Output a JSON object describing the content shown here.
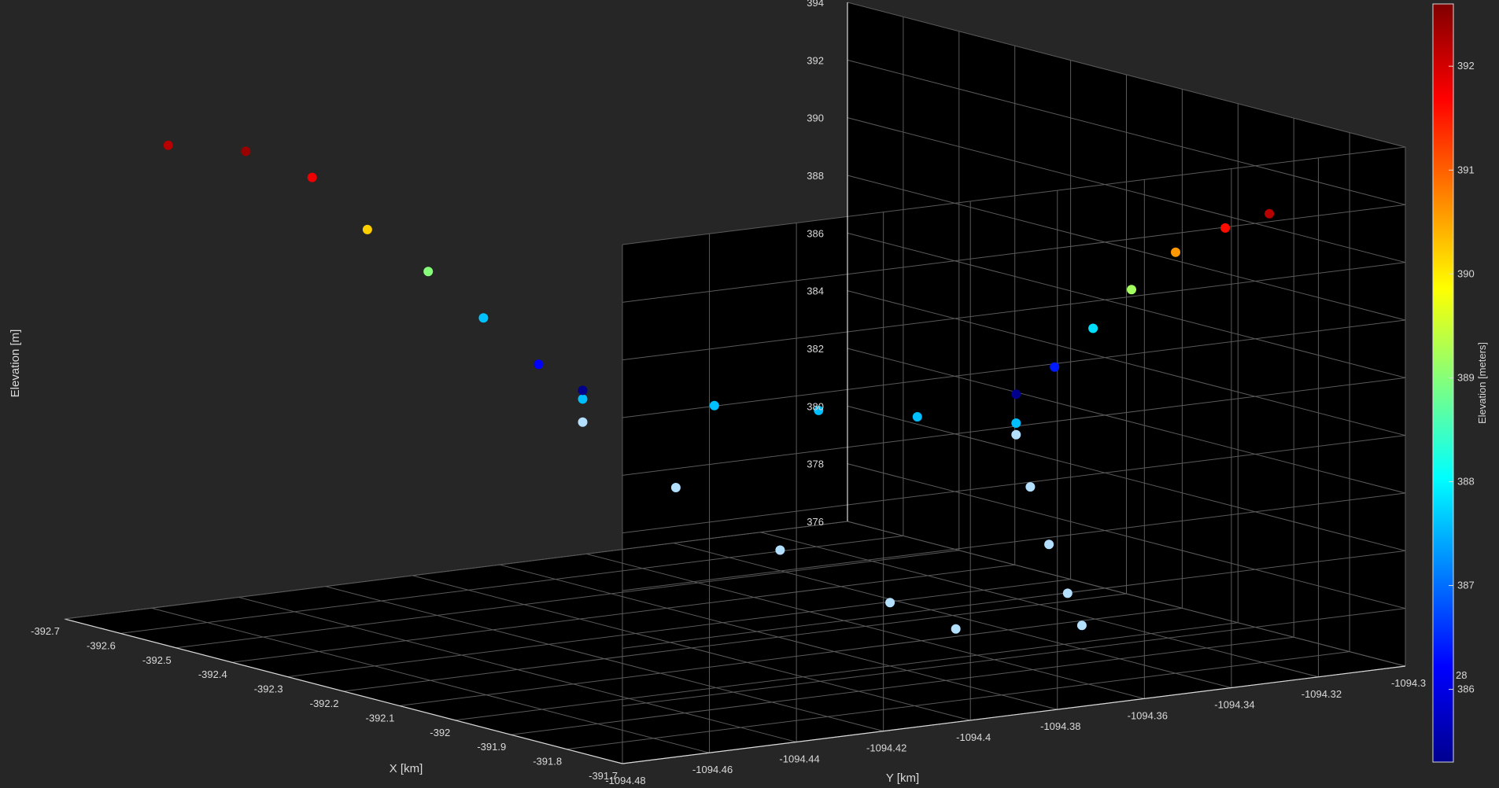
{
  "chart_data": {
    "type": "scatter",
    "title": "",
    "xlabel": "X [km]",
    "ylabel": "Y [km]",
    "zlabel": "Elevation [m]",
    "colorbar_label": "Elevation [meters]",
    "colormap": "jet",
    "background": "#262626",
    "plot_background": "#000000",
    "grid": true,
    "grid_color": "#5a5a5a",
    "tick_color": "#d9d9d9",
    "xlim": [
      -392.7,
      -391.7
    ],
    "ylim": [
      -1094.48,
      -1094.3
    ],
    "zlim": [
      376,
      394
    ],
    "x_ticks": [
      "-392.7",
      "-392.6",
      "-392.5",
      "-392.4",
      "-392.3",
      "-392.2",
      "-392.1",
      "-392",
      "-391.9",
      "-391.8",
      "-391.7"
    ],
    "y_ticks": [
      "-1094.48",
      "-1094.46",
      "-1094.44",
      "-1094.42",
      "-1094.4",
      "-1094.38",
      "-1094.36",
      "-1094.34",
      "-1094.32",
      "-1094.3"
    ],
    "z_ticks": [
      "376",
      "378",
      "380",
      "382",
      "384",
      "386",
      "388",
      "390",
      "392",
      "394"
    ],
    "colorbar_range": [
      385.3,
      392.6
    ],
    "colorbar_ticks": [
      "386",
      "387",
      "388",
      "389",
      "390",
      "391",
      "392"
    ],
    "colorbar_extra_tick": "28",
    "series": [
      {
        "color_mode": "elevation",
        "points": [
          {
            "x": -392.67,
            "y": -1094.46,
            "z": 392.2
          },
          {
            "x": -392.57,
            "y": -1094.455,
            "z": 392.4
          },
          {
            "x": -392.49,
            "y": -1094.45,
            "z": 391.8
          },
          {
            "x": -392.43,
            "y": -1094.445,
            "z": 390.2
          },
          {
            "x": -392.36,
            "y": -1094.44,
            "z": 389.0
          },
          {
            "x": -392.3,
            "y": -1094.435,
            "z": 387.6
          },
          {
            "x": -392.24,
            "y": -1094.43,
            "z": 386.2
          },
          {
            "x": -392.2,
            "y": -1094.425,
            "z": 385.4
          },
          {
            "x": -391.93,
            "y": -1094.36,
            "z": 385.4
          },
          {
            "x": -391.9,
            "y": -1094.355,
            "z": 386.4
          },
          {
            "x": -391.87,
            "y": -1094.35,
            "z": 387.8
          },
          {
            "x": -391.84,
            "y": -1094.345,
            "z": 389.2
          },
          {
            "x": -391.8,
            "y": -1094.34,
            "z": 390.6
          },
          {
            "x": -391.75,
            "y": -1094.335,
            "z": 391.6
          },
          {
            "x": -391.71,
            "y": -1094.33,
            "z": 392.2
          }
        ]
      },
      {
        "color": "#00bfff",
        "points": [
          {
            "x": -392.2,
            "y": -1094.425,
            "z": 385.1
          },
          {
            "x": -392.12,
            "y": -1094.405,
            "z": 384.9
          },
          {
            "x": -392.05,
            "y": -1094.39,
            "z": 384.8
          },
          {
            "x": -391.99,
            "y": -1094.375,
            "z": 384.6
          },
          {
            "x": -391.93,
            "y": -1094.36,
            "z": 384.4
          }
        ]
      },
      {
        "color": "#b3e0ff",
        "points": [
          {
            "x": -392.2,
            "y": -1094.425,
            "z": 384.3
          },
          {
            "x": -392.15,
            "y": -1094.41,
            "z": 382.0
          },
          {
            "x": -392.08,
            "y": -1094.395,
            "z": 379.9
          },
          {
            "x": -392.0,
            "y": -1094.38,
            "z": 378.2
          },
          {
            "x": -391.96,
            "y": -1094.37,
            "z": 377.3
          },
          {
            "x": -391.93,
            "y": -1094.36,
            "z": 384.0
          },
          {
            "x": -391.92,
            "y": -1094.358,
            "z": 382.2
          },
          {
            "x": -391.91,
            "y": -1094.355,
            "z": 380.2
          },
          {
            "x": -391.9,
            "y": -1094.352,
            "z": 378.5
          },
          {
            "x": -391.89,
            "y": -1094.35,
            "z": 377.4
          }
        ]
      }
    ]
  }
}
